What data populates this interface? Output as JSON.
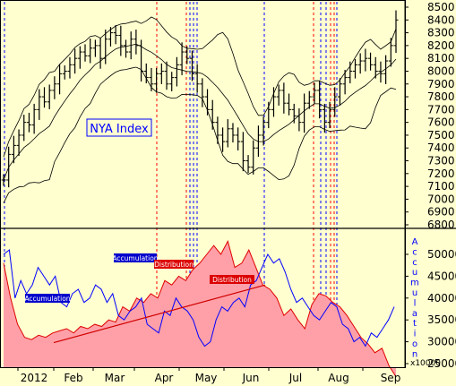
{
  "chart_data": [
    {
      "type": "ohlc",
      "title": "NYA Index",
      "y_ticks": [
        6800,
        6900,
        7000,
        7100,
        7200,
        7300,
        7400,
        7500,
        7600,
        7700,
        7800,
        7900,
        8000,
        8100,
        8200,
        8300,
        8400,
        8500
      ],
      "ylim": [
        6700,
        8600
      ],
      "grid": false,
      "overlays": [
        "bollinger-upper",
        "bollinger-middle",
        "bollinger-lower"
      ],
      "series": [
        {
          "name": "price",
          "values": [
            7150,
            7350,
            7420,
            7500,
            7600,
            7580,
            7700,
            7800,
            7760,
            7850,
            7900,
            7980,
            8000,
            8050,
            8100,
            8150,
            8120,
            8180,
            8200,
            8100,
            8250,
            8300,
            8280,
            8200,
            8150,
            8250,
            8200,
            8000,
            7950,
            7900,
            7980,
            8000,
            7900,
            7950,
            8050,
            8150,
            8100,
            7980,
            7900,
            7800,
            7700,
            7600,
            7500,
            7450,
            7550,
            7500,
            7450,
            7300,
            7250,
            7400,
            7500,
            7600,
            7700,
            7800,
            7850,
            7750,
            7700,
            7650,
            7600,
            7750,
            7800,
            7850,
            7700,
            7600,
            7700,
            7800,
            7900,
            7950,
            8000,
            8050,
            8080,
            8100,
            8050,
            8000,
            7980,
            8080,
            8200,
            8400
          ]
        }
      ]
    },
    {
      "type": "area",
      "x_ticks": [
        "2012",
        "Feb",
        "Mar",
        "Apr",
        "May",
        "Jun",
        "Jul",
        "Aug",
        "Sep"
      ],
      "y_ticks": [
        25000,
        30000,
        35000,
        40000,
        45000,
        50000
      ],
      "ylim": [
        21500,
        53500
      ],
      "scale_note": "x10000",
      "right_label": "Accumulation",
      "series": [
        {
          "name": "",
          "values": [
            48000,
            40000,
            34000,
            31000,
            30500,
            31500,
            31000,
            32000,
            32500,
            33000,
            32000,
            33500,
            33000,
            34000,
            33500,
            35000,
            34500,
            38000,
            37000,
            40000,
            39000,
            41000,
            40000,
            44000,
            43000,
            45000,
            44000,
            46500,
            48000,
            50000,
            52000,
            50000,
            53000,
            47000,
            48000,
            51000,
            47000,
            43000,
            42000,
            40000,
            36000,
            37500,
            35000,
            33000,
            38500,
            41000,
            40500,
            39000,
            38000,
            36000,
            33500,
            31000,
            29500,
            27500,
            28500,
            24500,
            22000
          ]
        },
        {
          "name": "",
          "values": [
            50000,
            51000,
            40000,
            44000,
            41000,
            43000,
            47000,
            45000,
            43000,
            45000,
            39000,
            38000,
            41000,
            42000,
            39000,
            40000,
            43000,
            42000,
            39000,
            41000,
            36000,
            35000,
            37000,
            38000,
            40000,
            34000,
            33000,
            32000,
            37000,
            36000,
            40000,
            38000,
            37000,
            35000,
            31000,
            29000,
            30000,
            35000,
            38000,
            37000,
            39000,
            40000,
            38000,
            43000,
            44000,
            47000,
            50000,
            48000,
            49000,
            46000,
            42000,
            39000,
            40000,
            38000,
            36000,
            35000,
            37000,
            39000,
            38000,
            34000,
            33000,
            30000,
            31000,
            29000,
            32000,
            31000,
            33000,
            35000,
            38000
          ]
        }
      ],
      "trendlines": [
        {
          "from": [
            "Feb",
            29800
          ],
          "to": [
            "Jun",
            43000
          ]
        }
      ],
      "annotations": [
        {
          "text": "Accumulation",
          "style": "blue"
        },
        {
          "text": "Accumulation",
          "style": "blue"
        },
        {
          "text": "Distribution",
          "style": "red"
        },
        {
          "text": "Distribution",
          "style": "red"
        }
      ]
    }
  ],
  "colors": {
    "background": "#ffffd0",
    "accumulation_marker": "#0000ff",
    "distribution_marker": "#ff0000",
    "price_bars": "#000000",
    "area_fill": "#ffa0a8",
    "area_edge": "#e00000",
    "blue_line": "#0000ff",
    "bands": "#000000"
  }
}
